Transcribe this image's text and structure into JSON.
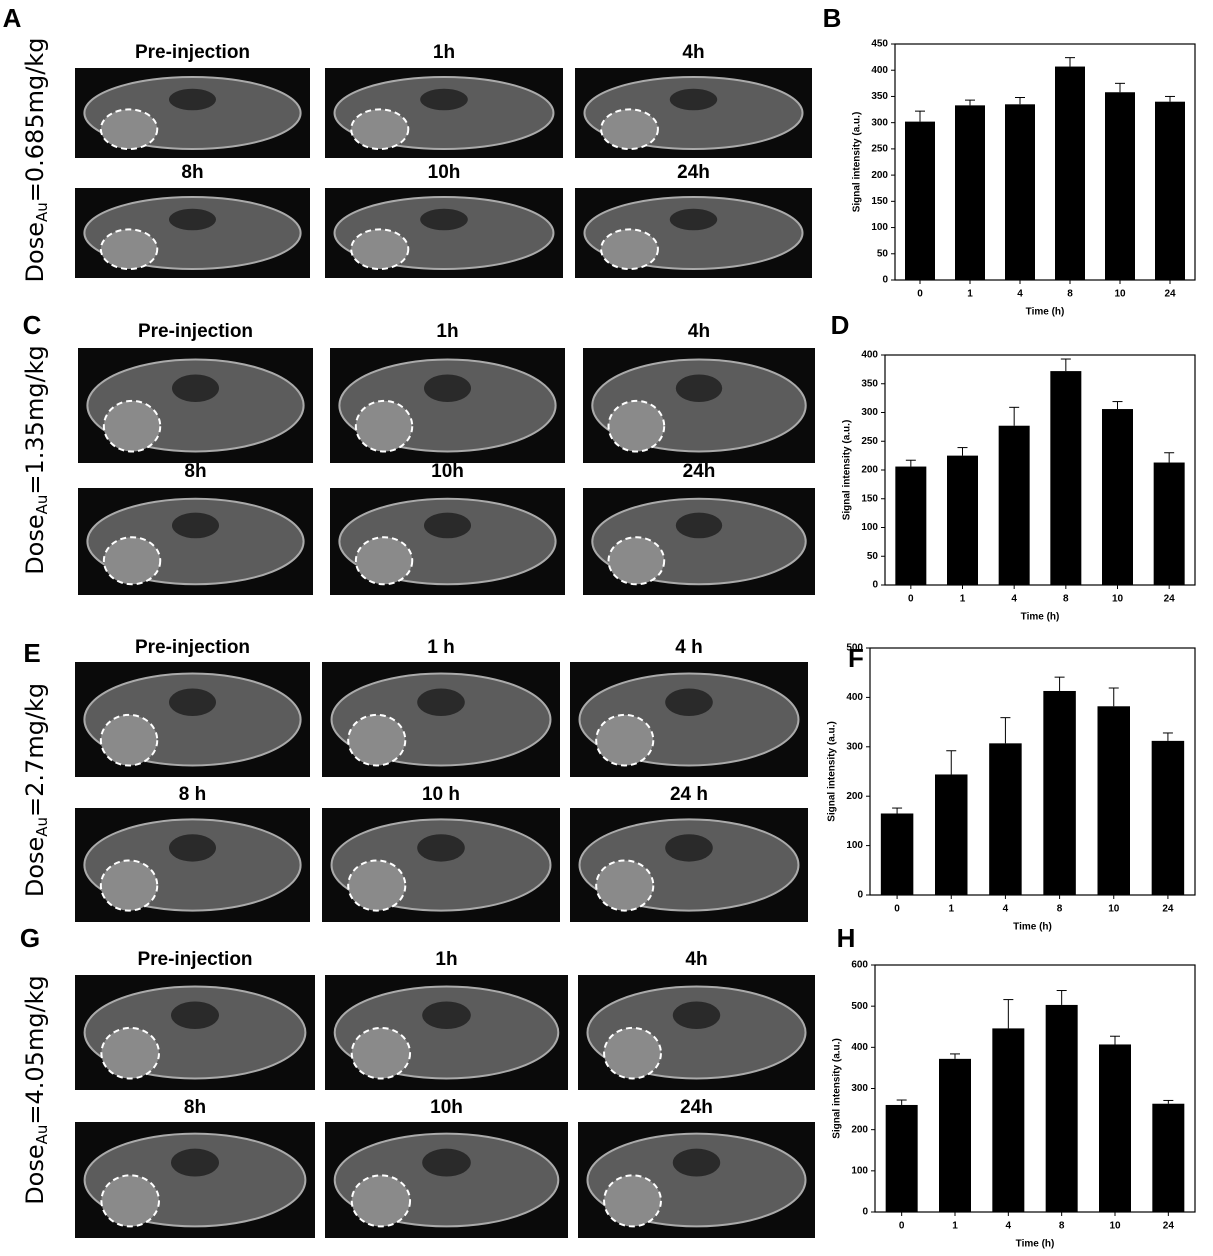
{
  "chart_data": [
    {
      "type": "bar",
      "panel": "B",
      "ylabel": "Signal intensity (a.u.)",
      "xlabel": "Time (h)",
      "categories": [
        "0",
        "1",
        "4",
        "8",
        "10",
        "24"
      ],
      "values": [
        302,
        333,
        335,
        407,
        358,
        340
      ],
      "errors": [
        20,
        10,
        13,
        17,
        17,
        10
      ],
      "color": "#000000",
      "ylim": [
        0,
        450
      ],
      "yticks": [
        0,
        50,
        100,
        150,
        200,
        250,
        300,
        350,
        400,
        450
      ]
    },
    {
      "type": "bar",
      "panel": "D",
      "ylabel": "Signal intensity (a.u.)",
      "xlabel": "Time (h)",
      "categories": [
        "0",
        "1",
        "4",
        "8",
        "10",
        "24"
      ],
      "values": [
        206,
        225,
        277,
        372,
        306,
        213
      ],
      "errors": [
        11,
        14,
        32,
        21,
        13,
        17
      ],
      "color": "#000000",
      "ylim": [
        0,
        400
      ],
      "yticks": [
        0,
        50,
        100,
        150,
        200,
        250,
        300,
        350,
        400
      ]
    },
    {
      "type": "bar",
      "panel": "F",
      "ylabel": "Signal intensity (a.u.)",
      "xlabel": "Time (h)",
      "categories": [
        "0",
        "1",
        "4",
        "8",
        "10",
        "24"
      ],
      "values": [
        165,
        244,
        307,
        413,
        382,
        312
      ],
      "errors": [
        11,
        48,
        52,
        28,
        37,
        16
      ],
      "color": "#000000",
      "ylim": [
        0,
        500
      ],
      "yticks": [
        0,
        100,
        200,
        300,
        400,
        500
      ]
    },
    {
      "type": "bar",
      "panel": "H",
      "ylabel": "Signal intensity (a.u.)",
      "xlabel": "Time (h)",
      "categories": [
        "0",
        "1",
        "4",
        "8",
        "10",
        "24"
      ],
      "values": [
        260,
        372,
        446,
        503,
        407,
        263
      ],
      "errors": [
        12,
        12,
        70,
        35,
        20,
        8
      ],
      "color": "#000000",
      "ylim": [
        0,
        600
      ],
      "yticks": [
        0,
        100,
        200,
        300,
        400,
        500,
        600
      ]
    }
  ],
  "image_panels": [
    {
      "panel": "A",
      "dose": {
        "base": "Dose",
        "subscript": "Au",
        "rest": "=0.685mg/kg"
      },
      "labels": [
        "Pre-injection",
        "1h",
        "4h",
        "8h",
        "10h",
        "24h"
      ]
    },
    {
      "panel": "C",
      "dose": {
        "base": "Dose",
        "subscript": "Au",
        "rest": "=1.35mg/kg"
      },
      "labels": [
        "Pre-injection",
        "1h",
        "4h",
        "8h",
        "10h",
        "24h"
      ]
    },
    {
      "panel": "E",
      "dose": {
        "base": "Dose",
        "subscript": "Au",
        "rest": "=2.7mg/kg"
      },
      "labels": [
        "Pre-injection",
        "1 h",
        "4 h",
        "8 h",
        "10 h",
        "24 h"
      ]
    },
    {
      "panel": "G",
      "dose": {
        "base": "Dose",
        "subscript": "Au",
        "rest": "=4.05mg/kg"
      },
      "labels": [
        "Pre-injection",
        "1h",
        "4h",
        "8h",
        "10h",
        "24h"
      ]
    }
  ]
}
